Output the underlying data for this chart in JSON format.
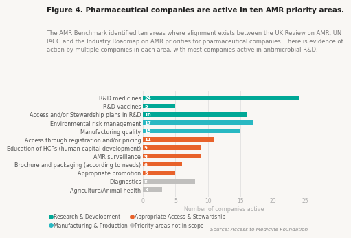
{
  "title": "Figure 4. Pharmaceutical companies are active in ten AMR priority areas.",
  "subtitle": "The AMR Benchmark identified ten areas where alignment exists between the UK Review on AMR, UN IACG and the Industry Roadmap on AMR priorities for pharmaceutical companies. There is evidence of action by multiple companies in each area, with most companies active in antimicrobial R&D.",
  "source": "Source: Access to Medicine Foundation",
  "xlabel": "Number of companies active",
  "categories": [
    "Agriculture/Animal health",
    "Diagnostics",
    "Appropriate promotion",
    "Brochure and packaging (according to needs)",
    "AMR surveillance",
    "Education of HCPs (human capital development)",
    "Access through registration and/or pricing",
    "Manufacturing quality",
    "Environmental risk management",
    "Access and/or Stewardship plans in R&D",
    "R&D vaccines",
    "R&D medicines"
  ],
  "values": [
    3,
    8,
    5,
    6,
    9,
    9,
    11,
    15,
    17,
    16,
    5,
    24
  ],
  "colors": [
    "#c0bfbd",
    "#c0bfbd",
    "#e8622a",
    "#e8622a",
    "#e8622a",
    "#e8622a",
    "#e8622a",
    "#29b8c2",
    "#29b8c2",
    "#00a896",
    "#00a896",
    "#00a896"
  ],
  "bar_labels": [
    "3",
    "8",
    "5",
    "6",
    "9",
    "9",
    "11",
    "15",
    "17",
    "16",
    "5",
    "24"
  ],
  "legend": [
    {
      "label": "Research & Development",
      "color": "#00a896"
    },
    {
      "label": "Manufacturing & Production",
      "color": "#29b8c2"
    },
    {
      "label": "Appropriate Access & Stewardship",
      "color": "#e8622a"
    },
    {
      "label": "Priority areas not in scope",
      "color": "#c0bfbd"
    }
  ],
  "xlim": [
    0,
    25
  ],
  "xticks": [
    0,
    5,
    10,
    15,
    20,
    25
  ],
  "background_color": "#f9f7f4",
  "title_fontsize": 7.5,
  "subtitle_fontsize": 6.0,
  "label_fontsize": 5.8,
  "tick_fontsize": 5.5,
  "bar_height": 0.55
}
